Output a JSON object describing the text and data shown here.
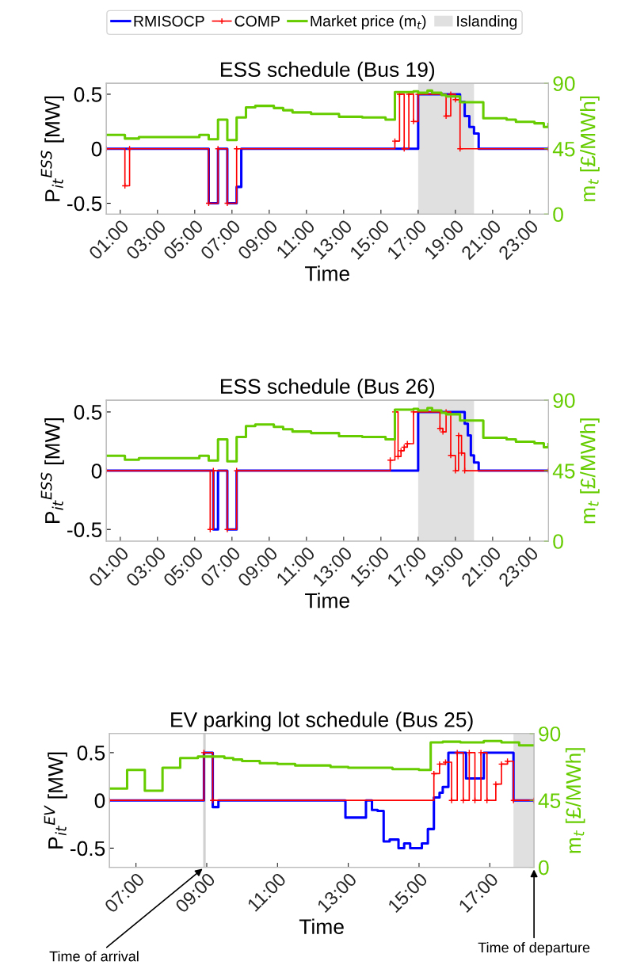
{
  "chart_data": [
    {
      "type": "step",
      "title": "ESS schedule (Bus 19)",
      "xlabel": "Time",
      "ylabel": "P$_{it}$$^{ESS}$ [MW]",
      "y2label": "m$_{t}$ [£/MWh]",
      "legend": "top",
      "line_style": "solid",
      "xlim": [
        0.25,
        24
      ],
      "xticks": [
        {
          "value": 1,
          "label": "01:00"
        },
        {
          "value": 3,
          "label": "03:00"
        },
        {
          "value": 5,
          "label": "05:00"
        },
        {
          "value": 7,
          "label": "07:00"
        },
        {
          "value": 9,
          "label": "09:00"
        },
        {
          "value": 11,
          "label": "11:00"
        },
        {
          "value": 13,
          "label": "13:00"
        },
        {
          "value": 15,
          "label": "15:00"
        },
        {
          "value": 17,
          "label": "17:00"
        },
        {
          "value": 19,
          "label": "19:00"
        },
        {
          "value": 21,
          "label": "21:00"
        },
        {
          "value": 23,
          "label": "23:00"
        }
      ],
      "ylim": [
        -0.6,
        0.6
      ],
      "yticks": [
        -0.5,
        0,
        0.5
      ],
      "y2lim": [
        0,
        90
      ],
      "y2ticks": [
        0,
        45,
        90
      ],
      "bands": [
        {
          "axis": "x",
          "from": 17,
          "to": 20,
          "label": "Islanding",
          "color": "#e0e0e0"
        }
      ],
      "series": [
        {
          "name": "RMISOCP",
          "color": "#0000ff",
          "marker": "none",
          "x": [
            0.25,
            5.75,
            6.25,
            6.75,
            7.25,
            7.5,
            17.0,
            19.25,
            19.5,
            19.75,
            20.0,
            20.25,
            24
          ],
          "values": [
            0,
            -0.5,
            0,
            -0.5,
            -0.35,
            0,
            0.5,
            0.43,
            0.3,
            0.2,
            0.14,
            0,
            0
          ]
        },
        {
          "name": "COMP",
          "color": "#ff0000",
          "marker": "cross",
          "x": [
            0.25,
            1.25,
            1.5,
            5.75,
            6.25,
            6.75,
            7.25,
            15.75,
            16.0,
            16.25,
            16.5,
            16.75,
            17.0,
            18.5,
            18.75,
            19.0,
            19.25,
            24
          ],
          "values": [
            0,
            -0.34,
            0,
            -0.5,
            0,
            -0.5,
            0,
            0.07,
            0.5,
            0,
            0.5,
            0.25,
            0.5,
            0.3,
            0.5,
            0.45,
            0,
            0
          ]
        },
        {
          "name": "Market price (m$_{t}$)",
          "color": "#66cc00",
          "marker": "none",
          "axis": "y2",
          "x": [
            0.25,
            1.25,
            2.0,
            5.25,
            5.75,
            6.25,
            6.75,
            7.25,
            7.75,
            8.25,
            9.25,
            9.75,
            10.25,
            11.25,
            12.75,
            14.0,
            15.25,
            15.75,
            16.75,
            17.0,
            17.5,
            17.75,
            18.25,
            18.5,
            19.25,
            20.5,
            21.75,
            22.25,
            23.25,
            23.75,
            24
          ],
          "values": [
            54.5,
            52,
            53,
            54.5,
            51.5,
            65,
            51,
            66.5,
            73.5,
            74.5,
            73,
            71.5,
            70,
            69,
            67,
            66.5,
            65,
            84,
            84.5,
            83.5,
            85,
            83.5,
            82,
            81,
            77,
            66,
            65,
            63.5,
            62.5,
            60,
            62
          ]
        }
      ]
    },
    {
      "type": "step",
      "title": "ESS schedule (Bus 26)",
      "xlabel": "Time",
      "ylabel": "P$_{it}$$^{ESS}$ [MW]",
      "y2label": "m$_{t}$ [£/MWh]",
      "line_style": "solid",
      "xlim": [
        0.25,
        24
      ],
      "xticks": [
        {
          "value": 1,
          "label": "01:00"
        },
        {
          "value": 3,
          "label": "03:00"
        },
        {
          "value": 5,
          "label": "05:00"
        },
        {
          "value": 7,
          "label": "07:00"
        },
        {
          "value": 9,
          "label": "09:00"
        },
        {
          "value": 11,
          "label": "11:00"
        },
        {
          "value": 13,
          "label": "13:00"
        },
        {
          "value": 15,
          "label": "15:00"
        },
        {
          "value": 17,
          "label": "17:00"
        },
        {
          "value": 19,
          "label": "19:00"
        },
        {
          "value": 21,
          "label": "21:00"
        },
        {
          "value": 23,
          "label": "23:00"
        }
      ],
      "ylim": [
        -0.6,
        0.6
      ],
      "yticks": [
        -0.5,
        0,
        0.5
      ],
      "y2lim": [
        0,
        90
      ],
      "y2ticks": [
        0,
        45,
        90
      ],
      "bands": [
        {
          "axis": "x",
          "from": 17,
          "to": 20,
          "color": "#e0e0e0"
        }
      ],
      "series": [
        {
          "color": "#0000ff",
          "marker": "none",
          "x": [
            0.25,
            6.0,
            6.25,
            6.75,
            7.25,
            17.0,
            19.5,
            19.67,
            19.83,
            20.0,
            20.25,
            24
          ],
          "values": [
            0,
            -0.5,
            0,
            -0.5,
            0,
            0.5,
            0.4,
            0.3,
            0.13,
            0.07,
            0,
            0
          ]
        },
        {
          "color": "#ff0000",
          "marker": "cross",
          "x": [
            0.25,
            5.83,
            6.0,
            6.75,
            7.25,
            15.5,
            15.75,
            15.92,
            16.08,
            16.25,
            16.42,
            16.75,
            18.17,
            18.33,
            18.5,
            18.75,
            19.0,
            19.17,
            19.33,
            19.5,
            24
          ],
          "values": [
            0,
            -0.5,
            0,
            -0.5,
            0,
            0.09,
            0.5,
            0.12,
            0.17,
            0.2,
            0.23,
            0.5,
            0.36,
            0.33,
            0.5,
            0.13,
            0,
            0.3,
            0.15,
            0,
            0
          ]
        },
        {
          "color": "#66cc00",
          "marker": "none",
          "axis": "y2",
          "x": [
            0.25,
            1.25,
            2.0,
            5.25,
            5.75,
            6.25,
            6.75,
            7.25,
            7.75,
            8.25,
            9.25,
            9.75,
            10.25,
            11.25,
            12.75,
            14.0,
            15.25,
            15.75,
            16.75,
            17.0,
            17.5,
            17.75,
            18.25,
            18.5,
            19.25,
            20.5,
            21.75,
            22.25,
            23.25,
            23.75,
            24
          ],
          "values": [
            54.5,
            52,
            53,
            54.5,
            51.5,
            65,
            51,
            66.5,
            73.5,
            74.5,
            73,
            71.5,
            70,
            69,
            67,
            66.5,
            65,
            84,
            84.5,
            83.5,
            85,
            83.5,
            82,
            81,
            77,
            66,
            65,
            63.5,
            62.5,
            60,
            62
          ]
        }
      ]
    },
    {
      "type": "step",
      "title": "EV parking lot schedule (Bus 25)",
      "xlabel": "Time",
      "ylabel": "P$_{it}$$^{EV}$ [MW]",
      "y2label": "m$_{t}$ [£/MWh]",
      "line_style": "solid",
      "xlim": [
        6.25,
        18.25
      ],
      "xticks": [
        {
          "value": 7,
          "label": "07:00"
        },
        {
          "value": 9,
          "label": "09:00"
        },
        {
          "value": 11,
          "label": "11:00"
        },
        {
          "value": 13,
          "label": "13:00"
        },
        {
          "value": 15,
          "label": "15:00"
        },
        {
          "value": 17,
          "label": "17:00"
        }
      ],
      "ylim": [
        -0.7,
        0.7
      ],
      "yticks": [
        -0.5,
        0,
        0.5
      ],
      "y2lim": [
        0,
        90
      ],
      "y2ticks": [
        0,
        45,
        90
      ],
      "bands": [
        {
          "axis": "x",
          "from": 8.9,
          "to": 8.97,
          "color": "#d0d0d0"
        },
        {
          "axis": "x",
          "from": 17.67,
          "to": 18.25,
          "color": "#e0e0e0"
        }
      ],
      "annotations": [
        {
          "text": "Time of arrival",
          "x": 8.93,
          "y": -0.7
        },
        {
          "text": "Time of departure",
          "x": 18.25,
          "y": -0.7
        }
      ],
      "series": [
        {
          "color": "#0000ff",
          "marker": "none",
          "x": [
            6.25,
            8.92,
            9.17,
            9.33,
            12.92,
            13.5,
            13.67,
            13.83,
            14.0,
            14.17,
            14.42,
            14.58,
            14.75,
            15.08,
            15.25,
            15.42,
            15.58,
            15.67,
            15.83,
            16.33,
            16.83,
            17.67,
            18.25
          ],
          "values": [
            0,
            0.5,
            -0.07,
            0,
            -0.18,
            0,
            -0.1,
            -0.11,
            -0.43,
            -0.41,
            -0.5,
            -0.45,
            -0.5,
            -0.45,
            -0.3,
            0.03,
            0.08,
            0.14,
            0.5,
            0.23,
            0.5,
            0,
            0
          ]
        },
        {
          "color": "#ff0000",
          "marker": "cross",
          "x": [
            6.25,
            8.92,
            9.17,
            15.42,
            15.58,
            15.75,
            15.92,
            16.08,
            16.25,
            16.42,
            16.58,
            16.75,
            16.92,
            17.17,
            17.33,
            17.5,
            17.67,
            18.25
          ],
          "values": [
            0,
            0.5,
            0,
            0.28,
            0.38,
            0.4,
            0,
            0.5,
            0,
            0.5,
            0,
            0.5,
            0,
            0.17,
            0.38,
            0.41,
            0,
            0
          ]
        },
        {
          "color": "#66cc00",
          "marker": "none",
          "axis": "y2",
          "x": [
            6.25,
            6.75,
            7.25,
            7.75,
            8.25,
            8.75,
            9.5,
            9.75,
            10.0,
            10.5,
            11.0,
            11.5,
            12.5,
            13.0,
            14.25,
            15.0,
            15.33,
            15.67,
            16.17,
            16.83,
            17.33,
            17.83,
            18.25
          ],
          "values": [
            53,
            65.5,
            51.5,
            67,
            73.5,
            74.5,
            73.5,
            72.5,
            71.5,
            70,
            69.5,
            68.5,
            67.5,
            67,
            66,
            65.5,
            84,
            84.5,
            84,
            85,
            84,
            82,
            82
          ]
        }
      ]
    }
  ]
}
